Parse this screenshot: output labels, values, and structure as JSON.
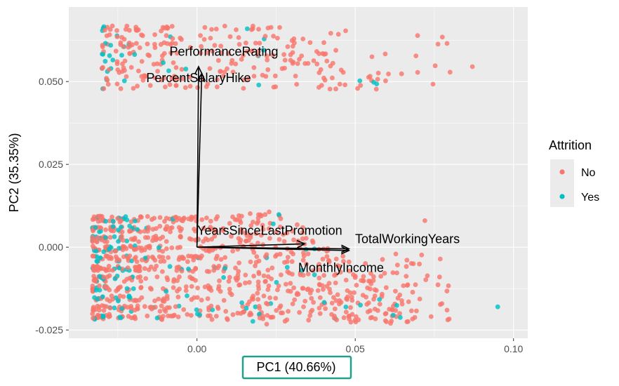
{
  "chart_data": {
    "type": "scatter",
    "title": "",
    "xlabel": "PC1 (40.66%)",
    "ylabel": "PC2 (35.35%)",
    "xlim": [
      -0.0405,
      0.1045
    ],
    "ylim": [
      -0.0275,
      0.0725
    ],
    "x_ticks": [
      0.0,
      0.05,
      0.1
    ],
    "x_tick_labels": [
      "0.00",
      "0.05",
      "0.10"
    ],
    "y_ticks": [
      -0.025,
      0.0,
      0.025,
      0.05
    ],
    "y_tick_labels": [
      "-0.025",
      "0.000",
      "0.025",
      "0.050"
    ],
    "grid": true,
    "legend": {
      "title": "Attrition",
      "placement": "right"
    },
    "series": [
      {
        "name": "No",
        "color": "#F8766D"
      },
      {
        "name": "Yes",
        "color": "#00BFC4"
      }
    ],
    "loadings": [
      {
        "name": "PerformanceRating",
        "x": 0.0005,
        "y": 0.0545
      },
      {
        "name": "PercentSalaryHike",
        "x": 0.0015,
        "y": 0.0525
      },
      {
        "name": "YearsSinceLastPromotion",
        "x": 0.034,
        "y": 0.001
      },
      {
        "name": "TotalWorkingYears",
        "x": 0.048,
        "y": -0.0005
      },
      {
        "name": "MonthlyIncome",
        "x": 0.048,
        "y": -0.001
      }
    ]
  },
  "highlight": {
    "target": "x-axis-title",
    "color": "#20A08A"
  }
}
